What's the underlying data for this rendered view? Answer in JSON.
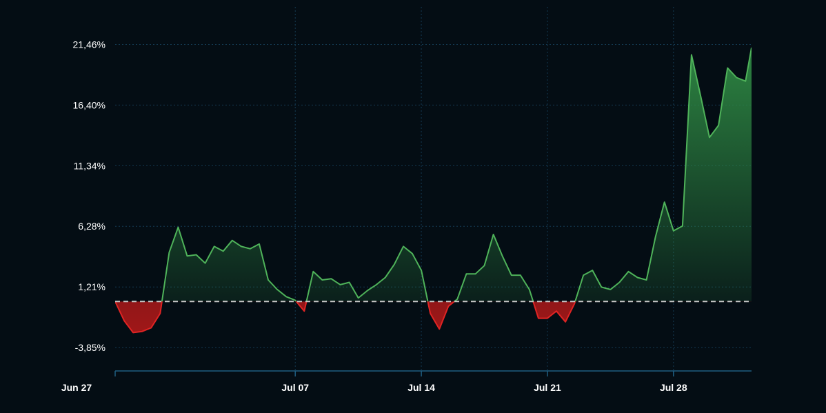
{
  "chart_data": {
    "type": "area",
    "title": "",
    "xlabel": "",
    "ylabel": "",
    "baseline": 0,
    "baseline_style": "dashed",
    "grid": true,
    "legend": "none",
    "colors": {
      "background": "#040d14",
      "grid": "#143a52",
      "axis": "#1f5f82",
      "positive_line": "#4fb35a",
      "positive_fill": "#2f8a44",
      "negative_line": "#e02424",
      "negative_fill": "#a81818",
      "baseline": "#c8c8c8",
      "text": "#ffffff"
    },
    "y_ticks": [
      -3.85,
      1.21,
      6.28,
      11.34,
      16.4,
      21.46
    ],
    "y_tick_labels": [
      "-3,85%",
      "1,21%",
      "6,28%",
      "11,34%",
      "16,40%",
      "21,46%"
    ],
    "ylim": [
      -5.8,
      24.6
    ],
    "x_ticks": [
      "2024-06-27",
      "2024-07-07",
      "2024-07-14",
      "2024-07-21",
      "2024-07-28"
    ],
    "x_tick_labels": [
      "Jun 27",
      "Jul 07",
      "Jul 14",
      "Jul 21",
      "Jul 28"
    ],
    "xlim": [
      "2024-06-27",
      "2024-08-01T08:00"
    ],
    "series": [
      {
        "x": [
          "2024-06-27T00:00",
          "2024-06-27T12:00",
          "2024-06-28T00:00",
          "2024-06-28T12:00",
          "2024-06-29T00:00",
          "2024-06-29T12:00",
          "2024-06-30T00:00",
          "2024-06-30T12:00",
          "2024-07-01T00:00",
          "2024-07-01T12:00",
          "2024-07-02T00:00",
          "2024-07-02T12:00",
          "2024-07-03T00:00",
          "2024-07-03T12:00",
          "2024-07-04T00:00",
          "2024-07-04T12:00",
          "2024-07-05T00:00",
          "2024-07-05T12:00",
          "2024-07-06T00:00",
          "2024-07-06T12:00",
          "2024-07-07T00:00",
          "2024-07-07T12:00",
          "2024-07-08T00:00",
          "2024-07-08T12:00",
          "2024-07-09T00:00",
          "2024-07-09T12:00",
          "2024-07-10T00:00",
          "2024-07-10T12:00",
          "2024-07-11T00:00",
          "2024-07-11T12:00",
          "2024-07-12T00:00",
          "2024-07-12T12:00",
          "2024-07-13T00:00",
          "2024-07-13T12:00",
          "2024-07-14T00:00",
          "2024-07-14T12:00",
          "2024-07-15T00:00",
          "2024-07-15T12:00",
          "2024-07-16T00:00",
          "2024-07-16T12:00",
          "2024-07-17T00:00",
          "2024-07-17T12:00",
          "2024-07-18T00:00",
          "2024-07-18T12:00",
          "2024-07-19T00:00",
          "2024-07-19T12:00",
          "2024-07-20T00:00",
          "2024-07-20T12:00",
          "2024-07-21T00:00",
          "2024-07-21T12:00",
          "2024-07-22T00:00",
          "2024-07-22T12:00",
          "2024-07-23T00:00",
          "2024-07-23T12:00",
          "2024-07-24T00:00",
          "2024-07-24T12:00",
          "2024-07-25T00:00",
          "2024-07-25T12:00",
          "2024-07-26T00:00",
          "2024-07-26T12:00",
          "2024-07-27T00:00",
          "2024-07-27T12:00",
          "2024-07-28T00:00",
          "2024-07-28T12:00",
          "2024-07-29T00:00",
          "2024-07-29T12:00",
          "2024-07-30T00:00",
          "2024-07-30T12:00",
          "2024-07-31T00:00",
          "2024-07-31T12:00",
          "2024-08-01T00:00",
          "2024-08-01T08:00"
        ],
        "y": [
          0.0,
          -1.6,
          -2.6,
          -2.5,
          -2.2,
          -1.0,
          4.1,
          6.2,
          3.8,
          3.9,
          3.2,
          4.6,
          4.2,
          5.1,
          4.6,
          4.4,
          4.8,
          1.8,
          1.0,
          0.4,
          0.1,
          -0.8,
          2.5,
          1.8,
          1.9,
          1.4,
          1.6,
          0.3,
          0.9,
          1.4,
          2.0,
          3.1,
          4.6,
          4.0,
          2.6,
          -1.0,
          -2.3,
          -0.4,
          0.2,
          2.3,
          2.3,
          3.0,
          5.6,
          3.8,
          2.2,
          2.2,
          1.0,
          -1.4,
          -1.4,
          -0.8,
          -1.7,
          -0.2,
          2.2,
          2.6,
          1.2,
          1.0,
          1.6,
          2.5,
          2.0,
          1.8,
          5.4,
          8.3,
          5.9,
          6.3,
          20.6,
          17.2,
          13.7,
          14.7,
          19.5,
          18.7,
          18.4,
          21.2
        ]
      }
    ]
  }
}
